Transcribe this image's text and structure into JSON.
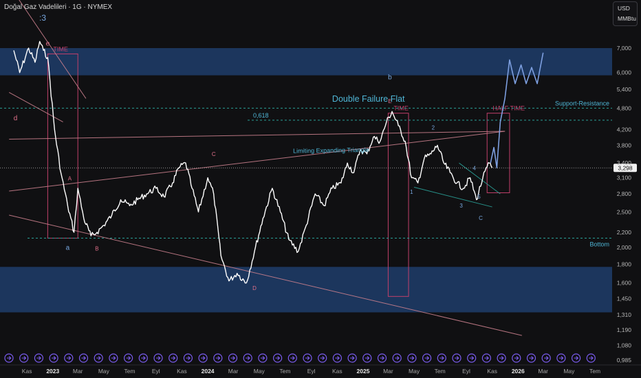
{
  "header": {
    "title": "Doğal Gaz Vadelileri · 1G · NYMEX"
  },
  "unit": {
    "currency": "USD",
    "measure": "MMBtu"
  },
  "colors": {
    "background": "#101012",
    "price": "#ffffff",
    "zone": "#1e3d6b",
    "trendline": "#c97f8c",
    "box": "#c2406b",
    "cyan_text": "#4fb6d6",
    "dashed": "#2aa198",
    "projection": "#7d9fe0",
    "wave_label": "#e0708a",
    "wave_label_blue": "#78a8e0",
    "event_icon": "#7b5cf0"
  },
  "chart_data": {
    "type": "line",
    "series": [
      {
        "name": "",
        "x": [
          "2022-10-01",
          "2022-10-15",
          "2022-11-05",
          "2022-11-20",
          "2022-12-01",
          "2022-12-10",
          "2022-12-20",
          "2023-01-05",
          "2023-01-20",
          "2023-02-05",
          "2023-02-20",
          "2023-03-01",
          "2023-03-15",
          "2023-04-01",
          "2023-04-15",
          "2023-05-01",
          "2023-05-20",
          "2023-06-10",
          "2023-07-01",
          "2023-07-20",
          "2023-08-10",
          "2023-09-01",
          "2023-09-20",
          "2023-10-10",
          "2023-10-25",
          "2023-11-10",
          "2023-11-25",
          "2023-12-10",
          "2024-01-01",
          "2024-01-15",
          "2024-02-01",
          "2024-02-20",
          "2024-03-10",
          "2024-04-01",
          "2024-04-20",
          "2024-05-10",
          "2024-06-01",
          "2024-06-20",
          "2024-07-10",
          "2024-08-01",
          "2024-08-20",
          "2024-09-10",
          "2024-10-01",
          "2024-10-20",
          "2024-11-10",
          "2024-11-25",
          "2024-12-10",
          "2024-12-25",
          "2025-01-10",
          "2025-01-25",
          "2025-02-10",
          "2025-02-25",
          "2025-03-10",
          "2025-03-25",
          "2025-04-10",
          "2025-04-25",
          "2025-05-10",
          "2025-05-25",
          "2025-06-10",
          "2025-06-25",
          "2025-07-10",
          "2025-07-25",
          "2025-08-10",
          "2025-08-25",
          "2025-09-10",
          "2025-09-25",
          "2025-10-10",
          "2025-10-25",
          "2025-11-01"
        ],
        "values": [
          6.9,
          6.0,
          7.0,
          6.4,
          7.3,
          6.9,
          6.6,
          4.2,
          3.2,
          2.6,
          2.2,
          2.9,
          2.4,
          2.15,
          2.2,
          2.3,
          2.45,
          2.7,
          2.6,
          2.7,
          2.8,
          2.9,
          2.75,
          3.0,
          3.3,
          3.4,
          2.9,
          2.5,
          3.1,
          2.8,
          1.9,
          1.62,
          1.7,
          1.6,
          1.95,
          2.4,
          2.9,
          2.5,
          2.1,
          1.95,
          2.3,
          2.8,
          2.6,
          2.9,
          3.0,
          3.4,
          3.2,
          3.7,
          3.6,
          4.0,
          3.9,
          4.4,
          4.7,
          4.3,
          3.9,
          3.1,
          3.0,
          3.5,
          3.6,
          3.8,
          3.4,
          3.2,
          3.0,
          2.9,
          3.1,
          2.7,
          3.1,
          3.4,
          3.3
        ]
      },
      {
        "name": "",
        "x": [
          "2025-10-28",
          "2025-11-05",
          "2025-11-12",
          "2025-11-20",
          "2025-12-01",
          "2025-12-12",
          "2025-12-25",
          "2026-01-08",
          "2026-01-20",
          "2026-02-02",
          "2026-02-15",
          "2026-03-01"
        ],
        "values": [
          3.4,
          3.75,
          3.3,
          4.4,
          5.1,
          6.5,
          5.6,
          6.3,
          5.6,
          6.2,
          5.6,
          6.8
        ]
      }
    ],
    "x_ticks": [
      "2023",
      "Mar",
      "May",
      "Tem",
      "Eyl",
      "Kas",
      "2024",
      "Mar",
      "May",
      "Tem",
      "Eyl",
      "Kas",
      "2025",
      "Mar",
      "May",
      "Tem",
      "Eyl",
      "Kas",
      "2026",
      "Mar",
      "May",
      "Tem"
    ],
    "x_ticks_left": "Kas",
    "y_ticks": [
      "0,985",
      "1,080",
      "1,190",
      "1,310",
      "1,450",
      "1,600",
      "1,800",
      "2,000",
      "2,200",
      "2,500",
      "2,800",
      "3,100",
      "3,400",
      "3,800",
      "4,200",
      "4,800",
      "5,400",
      "6,000",
      "7,000"
    ],
    "y_tick_values": [
      0.985,
      1.08,
      1.19,
      1.31,
      1.45,
      1.6,
      1.8,
      2.0,
      2.2,
      2.5,
      2.8,
      3.1,
      3.4,
      3.8,
      4.2,
      4.8,
      5.4,
      6.0,
      7.0
    ],
    "y_scale": "log",
    "last_price": "3,298",
    "last_price_value": 3.298,
    "zones": [
      {
        "from": 5.9,
        "to": 7.0
      },
      {
        "from": 1.33,
        "to": 1.77
      }
    ],
    "horizontal_levels": [
      {
        "value": 4.8,
        "label": "Support-Resistance"
      },
      {
        "value": 4.45,
        "label": "0,618"
      },
      {
        "value": 2.12,
        "label": "Bottom"
      }
    ],
    "time_boxes": [
      {
        "label": "TIME",
        "x_from": "2022-12-20",
        "x_to": "2023-03-01",
        "y_from": 2.12,
        "y_to": 6.75
      },
      {
        "label": "TIME",
        "x_from": "2025-03-01",
        "x_to": "2025-04-18",
        "y_from": 1.47,
        "y_to": 4.65
      },
      {
        "label": "HALF TIME",
        "x_from": "2025-10-20",
        "x_to": "2025-12-12",
        "y_from": 2.82,
        "y_to": 4.65
      }
    ],
    "annotations": [
      {
        "text": "Double Failure Flat",
        "x": "2024-10-20",
        "y": 5.0
      },
      {
        "text": "Limiting Expanding Triangle",
        "x": "2024-07-20",
        "y": 3.62
      },
      {
        "text": ":3",
        "x": "2022-12-10",
        "y": 10.5
      }
    ],
    "wave_labels": [
      {
        "text": "e",
        "x": "2022-12-20",
        "y": 7.1
      },
      {
        "text": "d",
        "x": "2022-10-05",
        "y": 4.45
      },
      {
        "text": "A",
        "x": "2023-02-10",
        "y": 3.05
      },
      {
        "text": "a",
        "x": "2023-02-05",
        "y": 1.97
      },
      {
        "text": "B",
        "x": "2023-04-15",
        "y": 1.96
      },
      {
        "text": "C",
        "x": "2024-01-15",
        "y": 3.55
      },
      {
        "text": "D",
        "x": "2024-04-20",
        "y": 1.53
      },
      {
        "text": "E",
        "x": "2025-03-05",
        "y": 4.95
      },
      {
        "text": "b",
        "x": "2025-03-05",
        "y": 5.75
      },
      {
        "text": "1",
        "x": "2025-04-25",
        "y": 2.8
      },
      {
        "text": "2",
        "x": "2025-06-15",
        "y": 4.2
      },
      {
        "text": "3",
        "x": "2025-08-20",
        "y": 2.57
      },
      {
        "text": "4",
        "x": "2025-09-20",
        "y": 3.25
      },
      {
        "text": "5",
        "x": "2025-10-01",
        "y": 2.72
      },
      {
        "text": "C",
        "x": "2025-10-05",
        "y": 2.38
      }
    ],
    "trendlines": [
      {
        "from": [
          "2022-09-20",
          3.95
        ],
        "to": [
          "2025-12-01",
          4.15
        ]
      },
      {
        "from": [
          "2022-09-20",
          2.85
        ],
        "to": [
          "2025-12-01",
          4.15
        ]
      },
      {
        "from": [
          "2022-09-20",
          2.45
        ],
        "to": [
          "2026-01-10",
          1.15
        ]
      },
      {
        "from": [
          "2022-09-20",
          5.3
        ],
        "to": [
          "2023-01-25",
          4.4
        ]
      },
      {
        "from": [
          "2022-09-20",
          10.4
        ],
        "to": [
          "2023-03-20",
          5.1
        ]
      },
      {
        "from": [
          "2025-08-15",
          3.4
        ],
        "to": [
          "2025-11-20",
          2.8
        ]
      },
      {
        "from": [
          "2025-05-01",
          2.92
        ],
        "to": [
          "2025-11-01",
          2.58
        ]
      }
    ],
    "grid": false,
    "legend": "none"
  }
}
